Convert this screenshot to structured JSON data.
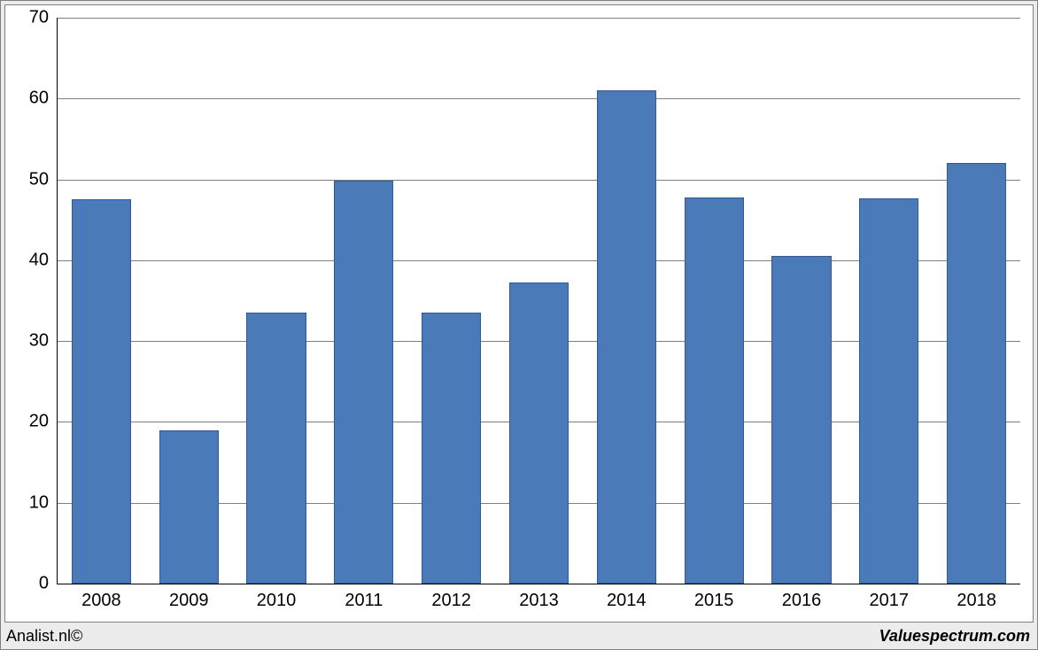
{
  "chart": {
    "type": "bar",
    "categories": [
      "2008",
      "2009",
      "2010",
      "2011",
      "2012",
      "2013",
      "2014",
      "2015",
      "2016",
      "2017",
      "2018"
    ],
    "values": [
      47.5,
      19.0,
      33.5,
      49.8,
      33.5,
      37.2,
      61.0,
      47.8,
      40.5,
      47.7,
      52.0
    ],
    "ylim": [
      0,
      70
    ],
    "ytick_step": 10,
    "bar_color": "#4a7ab8",
    "bar_border_color": "#2f5a93",
    "grid_color": "#808080",
    "background_color": "#ffffff",
    "panel_background": "#ececec",
    "tick_fontsize": 20,
    "bar_width_ratio": 0.68
  },
  "footer": {
    "left": "Analist.nl©",
    "right": "Valuespectrum.com"
  }
}
